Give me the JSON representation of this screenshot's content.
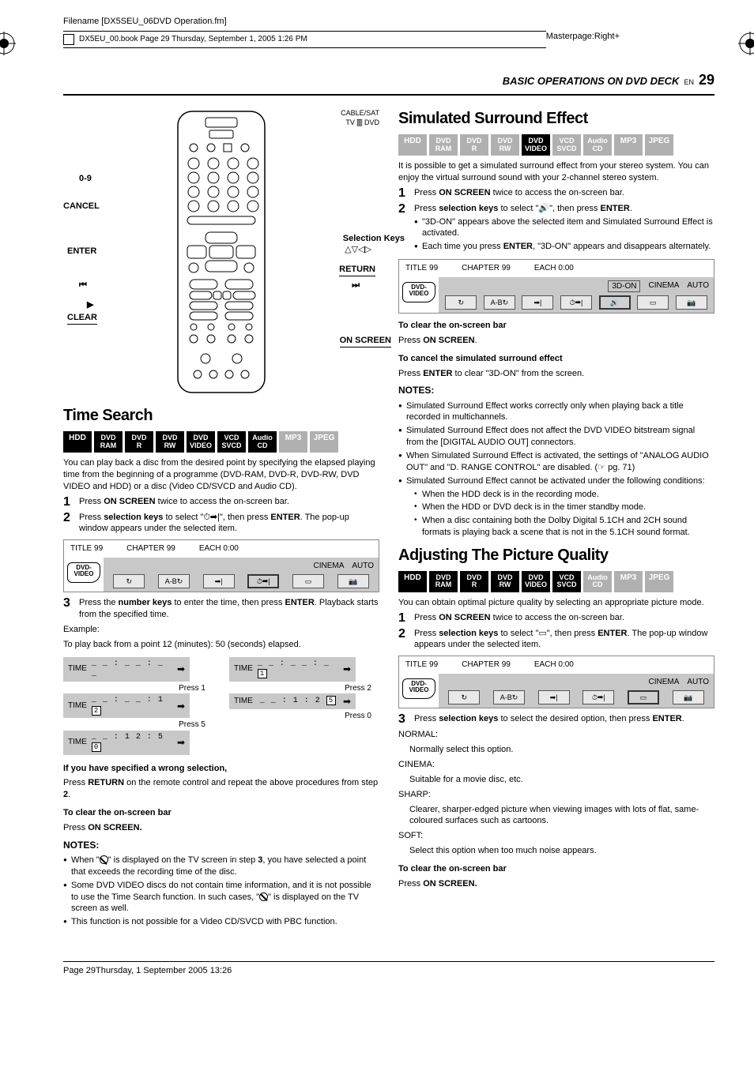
{
  "header": {
    "filename": "Filename [DX5SEU_06DVD Operation.fm]",
    "bookline": "DX5EU_00.book  Page 29  Thursday, September 1, 2005  1:26 PM",
    "masterpage": "Masterpage:Right+",
    "section_title": "BASIC OPERATIONS ON DVD DECK",
    "lang": "EN",
    "page_num": "29"
  },
  "remote": {
    "labels": {
      "l1": "0-9",
      "l2": "CANCEL",
      "l3": "ENTER",
      "l4": "⏮",
      "l5": "▶",
      "l6": "CLEAR",
      "r1": "CABLE/SAT",
      "r2": "TV 🀫 DVD",
      "r3": "Selection Keys",
      "r3b": "△▽◁▷",
      "r4": "RETURN",
      "r5": "⏭",
      "r6": "ON SCREEN"
    }
  },
  "left": {
    "time_search": {
      "title": "Time Search",
      "chips": [
        {
          "l": "HDD",
          "on": true
        },
        {
          "l": "DVD",
          "s": "RAM",
          "on": true
        },
        {
          "l": "DVD",
          "s": "R",
          "on": true
        },
        {
          "l": "DVD",
          "s": "RW",
          "on": true
        },
        {
          "l": "DVD",
          "s": "VIDEO",
          "on": true
        },
        {
          "l": "VCD",
          "s": "SVCD",
          "on": true
        },
        {
          "l": "Audio",
          "s": "CD",
          "on": true
        },
        {
          "l": "MP3",
          "on": false
        },
        {
          "l": "JPEG",
          "on": false
        }
      ],
      "intro": "You can play back a disc from the desired point by specifying the elapsed playing time from the beginning of a programme (DVD-RAM, DVD-R, DVD-RW, DVD VIDEO and HDD) or a disc (Video CD/SVCD and Audio CD).",
      "step1_a": "Press ",
      "step1_b": "ON SCREEN",
      "step1_c": " twice to access the on-screen bar.",
      "step2_a": "Press ",
      "step2_b": "selection keys",
      "step2_c": " to select \"⏱➡|\", then press ",
      "step2_d": "ENTER",
      "step2_e": ". The pop-up window appears under the selected item.",
      "osd": {
        "title": "TITLE 99",
        "chapter": "CHAPTER 99",
        "each": "EACH 0:00",
        "disc": "DVD-",
        "disc2": "VIDEO",
        "mode1": "CINEMA",
        "mode2": "AUTO"
      },
      "step3_a": "Press the ",
      "step3_b": "number keys",
      "step3_c": " to enter the time, then press ",
      "step3_d": "ENTER",
      "step3_e": ". Playback starts from the specified time.",
      "example_label": "Example:",
      "example_text": "To play back from a point 12 (minutes): 50 (seconds) elapsed.",
      "timeboxes": {
        "cells": [
          {
            "lbl": "TIME",
            "val": "_ _ : _ _ : _ _",
            "press": "Press 1"
          },
          {
            "lbl": "TIME",
            "val": "_ _ : _ _ : _",
            "hl": "1",
            "press": "Press 2"
          },
          {
            "lbl": "TIME",
            "val": "_ _ : _ _ : 1",
            "hl": "2",
            "press": "Press 5"
          },
          {
            "lbl": "TIME",
            "val": "_ _ : 1 : 2",
            "hl": "5",
            "press": "Press 0"
          },
          {
            "lbl": "TIME",
            "val": "_ _ : 1 2 : 5",
            "hl": "0",
            "press": ""
          }
        ]
      },
      "wrong_head": "If you have specified a wrong selection,",
      "wrong_a": "Press ",
      "wrong_b": "RETURN",
      "wrong_c": " on the remote control and repeat the above procedures from step ",
      "wrong_d": "2",
      "wrong_e": ".",
      "clear_head": "To clear the on-screen bar",
      "clear_a": "Press ",
      "clear_b": "ON SCREEN.",
      "notes_head": "NOTES:",
      "notes": [
        "When \"⊘\" is displayed on the TV screen in step 3, you have selected a point that exceeds the recording time of the disc.",
        "Some DVD VIDEO discs do not contain time information, and it is not possible to use the Time Search function. In such cases, \"⊘\" is displayed on the TV screen as well.",
        "This function is not possible for a Video CD/SVCD with PBC function."
      ]
    }
  },
  "right": {
    "surround": {
      "title": "Simulated Surround Effect",
      "chips": [
        {
          "l": "HDD",
          "on": false
        },
        {
          "l": "DVD",
          "s": "RAM",
          "on": false
        },
        {
          "l": "DVD",
          "s": "R",
          "on": false
        },
        {
          "l": "DVD",
          "s": "RW",
          "on": false
        },
        {
          "l": "DVD",
          "s": "VIDEO",
          "on": true
        },
        {
          "l": "VCD",
          "s": "SVCD",
          "on": false
        },
        {
          "l": "Audio",
          "s": "CD",
          "on": false
        },
        {
          "l": "MP3",
          "on": false
        },
        {
          "l": "JPEG",
          "on": false
        }
      ],
      "intro": "It is possible to get a simulated surround effect from your stereo system. You can enjoy the virtual surround sound with your 2-channel stereo system.",
      "step1_a": "Press ",
      "step1_b": "ON SCREEN",
      "step1_c": " twice to access the on-screen bar.",
      "step2_a": "Press ",
      "step2_b": "selection keys",
      "step2_c": " to select \"🔊\", then press ",
      "step2_d": "ENTER",
      "step2_e": ".",
      "step2_bullets": [
        "\"3D-ON\" appears above the selected item and Simulated Surround Effect is activated.",
        "Each time you press ENTER, \"3D-ON\" appears and disappears alternately."
      ],
      "osd": {
        "title": "TITLE 99",
        "chapter": "CHAPTER 99",
        "each": "EACH 0:00",
        "disc": "DVD-",
        "disc2": "VIDEO",
        "mode0": "3D-ON",
        "mode1": "CINEMA",
        "mode2": "AUTO"
      },
      "clear_head": "To clear the on-screen bar",
      "clear_a": "Press ",
      "clear_b": "ON SCREEN",
      "clear_c": ".",
      "cancel_head": "To cancel the simulated surround effect",
      "cancel_a": "Press ",
      "cancel_b": "ENTER",
      "cancel_c": " to clear \"3D-ON\" from the screen.",
      "notes_head": "NOTES:",
      "notes": [
        "Simulated Surround Effect works correctly only when playing back a title recorded in multichannels.",
        "Simulated Surround Effect does not affect the DVD VIDEO bitstream signal from the [DIGITAL AUDIO OUT] connectors.",
        "When Simulated Surround Effect is activated, the settings of \"ANALOG AUDIO OUT\" and \"D. RANGE CONTROL\" are disabled. (☞ pg. 71)",
        "Simulated Surround Effect cannot be activated under the following conditions:"
      ],
      "sub_notes": [
        "When the HDD deck is in the recording mode.",
        "When the HDD or DVD deck is in the timer standby mode.",
        "When a disc containing both the Dolby Digital 5.1CH and 2CH sound formats is playing back a scene that is not in the 5.1CH sound format."
      ]
    },
    "picture": {
      "title": "Adjusting The Picture Quality",
      "chips": [
        {
          "l": "HDD",
          "on": true
        },
        {
          "l": "DVD",
          "s": "RAM",
          "on": true
        },
        {
          "l": "DVD",
          "s": "R",
          "on": true
        },
        {
          "l": "DVD",
          "s": "RW",
          "on": true
        },
        {
          "l": "DVD",
          "s": "VIDEO",
          "on": true
        },
        {
          "l": "VCD",
          "s": "SVCD",
          "on": true
        },
        {
          "l": "Audio",
          "s": "CD",
          "on": false
        },
        {
          "l": "MP3",
          "on": false
        },
        {
          "l": "JPEG",
          "on": false
        }
      ],
      "intro": "You can obtain optimal picture quality by selecting an appropriate picture mode.",
      "step1_a": "Press ",
      "step1_b": "ON SCREEN",
      "step1_c": " twice to access the on-screen bar.",
      "step2_a": "Press ",
      "step2_b": "selection keys",
      "step2_c": " to select \"▭\", then press ",
      "step2_d": "ENTER",
      "step2_e": ". The pop-up window appears under the selected item.",
      "osd": {
        "title": "TITLE 99",
        "chapter": "CHAPTER 99",
        "each": "EACH 0:00",
        "disc": "DVD-",
        "disc2": "VIDEO",
        "mode1": "CINEMA",
        "mode2": "AUTO"
      },
      "step3_a": "Press ",
      "step3_b": "selection keys",
      "step3_c": " to select the desired option, then press ",
      "step3_d": "ENTER",
      "step3_e": ".",
      "options": [
        {
          "name": "NORMAL:",
          "desc": "Normally select this option."
        },
        {
          "name": "CINEMA:",
          "desc": "Suitable for a movie disc, etc."
        },
        {
          "name": "SHARP:",
          "desc": "Clearer, sharper-edged picture when viewing images with lots of flat, same-coloured surfaces such as cartoons."
        },
        {
          "name": "SOFT:",
          "desc": "Select this option when too much noise appears."
        }
      ],
      "clear_head": "To clear the on-screen bar",
      "clear_a": "Press ",
      "clear_b": "ON SCREEN."
    }
  },
  "footer": {
    "text": "Page 29Thursday, 1 September 2005  13:26"
  }
}
